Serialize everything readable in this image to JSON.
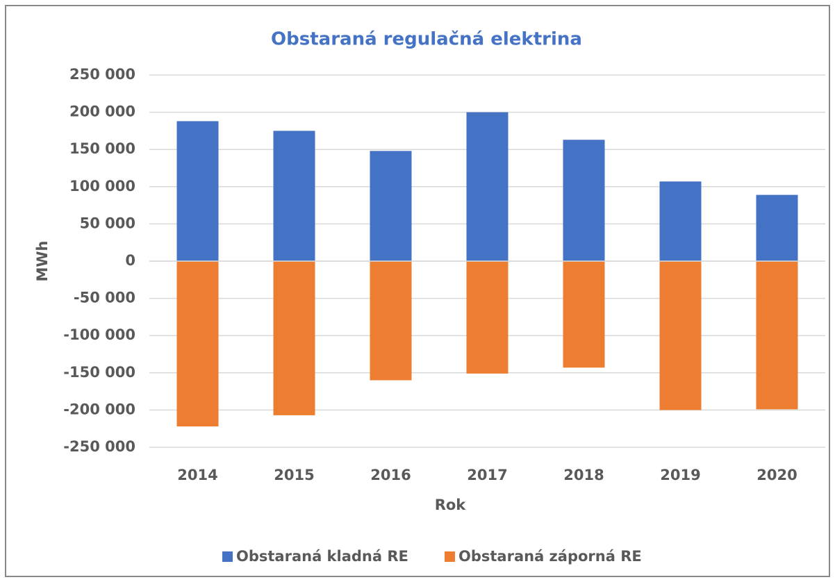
{
  "chart_data": {
    "type": "bar",
    "title": "Obstaraná regulačná elektrina",
    "x_label": "Rok",
    "y_label": "MWh",
    "categories": [
      "2014",
      "2015",
      "2016",
      "2017",
      "2018",
      "2019",
      "2020"
    ],
    "series": [
      {
        "name": "Obstaraná kladná RE",
        "color": "#4472c4",
        "values": [
          188000,
          175000,
          148000,
          200000,
          163000,
          107000,
          89000
        ]
      },
      {
        "name": "Obstaraná záporná RE",
        "color": "#ed7d31",
        "values": [
          -222000,
          -207000,
          -160000,
          -151000,
          -143000,
          -200000,
          -199000
        ]
      }
    ],
    "ylim": [
      -250000,
      250000
    ],
    "yticks": [
      {
        "value": 250000,
        "label": "250 000"
      },
      {
        "value": 200000,
        "label": "200 000"
      },
      {
        "value": 150000,
        "label": "150 000"
      },
      {
        "value": 100000,
        "label": "100 000"
      },
      {
        "value": 50000,
        "label": "50 000"
      },
      0,
      {
        "value": -50000,
        "label": "-50 000"
      },
      {
        "value": -100000,
        "label": "-100 000"
      },
      {
        "value": -150000,
        "label": "-150 000"
      },
      {
        "value": -200000,
        "label": "-200 000"
      },
      {
        "value": -250000,
        "label": "-250 000"
      }
    ],
    "grid": true,
    "legend": "bottom"
  }
}
